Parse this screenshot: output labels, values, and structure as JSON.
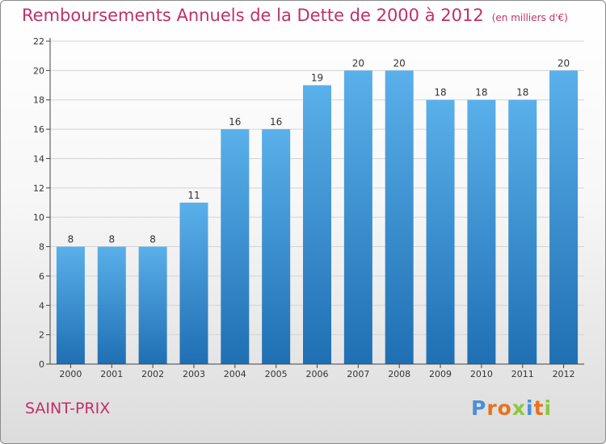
{
  "title": "Remboursements Annuels de la Dette de 2000 à 2012",
  "subtitle": "(en milliers d'€)",
  "commune": "SAINT-PRIX",
  "logo": {
    "letters": [
      "P",
      "r",
      "o",
      "x",
      "i",
      "t",
      "i"
    ],
    "colors": [
      "#4a8fd8",
      "#e6731e",
      "#e6731e",
      "#8cc63e",
      "#4a8fd8",
      "#e6731e",
      "#8cc63e"
    ]
  },
  "colors": {
    "bar_top": "#5ab0ea",
    "bar_bottom": "#1f6fb3",
    "title": "#c0306a",
    "axis": "#444444",
    "grid": "#d4d4d4"
  },
  "chart_data": {
    "type": "bar",
    "categories": [
      "2000",
      "2001",
      "2002",
      "2003",
      "2004",
      "2005",
      "2006",
      "2007",
      "2008",
      "2009",
      "2010",
      "2011",
      "2012"
    ],
    "values": [
      8,
      8,
      8,
      11,
      16,
      16,
      19,
      20,
      20,
      18,
      18,
      18,
      20
    ],
    "ylim": [
      0,
      22
    ],
    "yticks": [
      0,
      2,
      4,
      6,
      8,
      10,
      12,
      14,
      16,
      18,
      20,
      22
    ],
    "grid": true,
    "data_labels": true
  }
}
